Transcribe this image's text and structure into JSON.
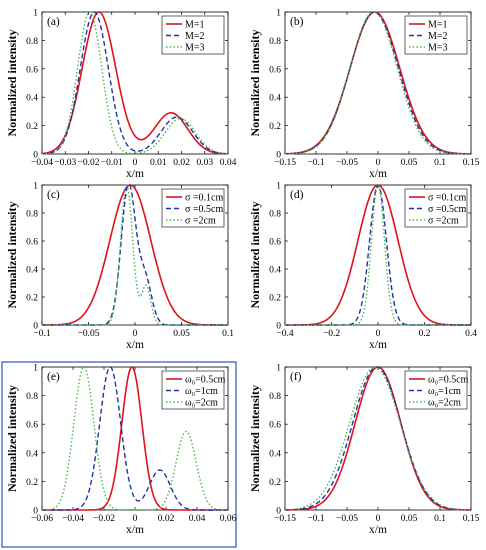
{
  "figure": {
    "background": "#ffffff"
  },
  "styles": {
    "colors": {
      "s1": "#e0131a",
      "s2": "#1e35a6",
      "s3": "#47b84a"
    },
    "dash": {
      "s1": "",
      "s2": "5,3",
      "s3": "1.5,2.2"
    }
  },
  "chart_data": [
    {
      "id": "a",
      "type": "line",
      "label": "(a)",
      "xlabel": "x/m",
      "ylabel": "Normalized intensity",
      "xlim": [
        -0.04,
        0.04
      ],
      "ylim": [
        0,
        1
      ],
      "xticks": [
        -0.04,
        -0.03,
        -0.02,
        -0.01,
        0,
        0.01,
        0.02,
        0.03,
        0.04
      ],
      "xtick_labels": [
        "−0.04",
        "−0.03",
        "−0.02",
        "−0.01",
        "0",
        "0.01",
        "0.02",
        "0.03",
        "0.04"
      ],
      "yticks": [
        0,
        0.2,
        0.4,
        0.6,
        0.8,
        1
      ],
      "ytick_labels": [
        "0",
        "0.2",
        "0.4",
        "0.6",
        "0.8",
        "1"
      ],
      "legend_pos": "top-right",
      "boxed": false,
      "series": [
        {
          "name": "M=1",
          "style": "s1",
          "peaks": [
            {
              "a": 1.0,
              "c": -0.0155,
              "s": 0.0072
            },
            {
              "a": 0.29,
              "c": 0.0155,
              "s": 0.0072
            }
          ]
        },
        {
          "name": "M=2",
          "style": "s2",
          "peaks": [
            {
              "a": 1.0,
              "c": -0.0175,
              "s": 0.006
            },
            {
              "a": 0.26,
              "c": 0.018,
              "s": 0.0068
            }
          ]
        },
        {
          "name": "M=3",
          "style": "s3",
          "peaks": [
            {
              "a": 1.0,
              "c": -0.0195,
              "s": 0.0052
            },
            {
              "a": 0.25,
              "c": 0.0195,
              "s": 0.0065
            }
          ]
        }
      ]
    },
    {
      "id": "b",
      "type": "line",
      "label": "(b)",
      "xlabel": "x/m",
      "ylabel": "Normalized intensity",
      "xlim": [
        -0.15,
        0.15
      ],
      "ylim": [
        0,
        1
      ],
      "xticks": [
        -0.15,
        -0.1,
        -0.05,
        0,
        0.05,
        0.1,
        0.15
      ],
      "xtick_labels": [
        "−0.15",
        "−0.1",
        "−0.05",
        "0",
        "0.05",
        "0.1",
        "0.15"
      ],
      "yticks": [
        0,
        0.2,
        0.4,
        0.6,
        0.8,
        1
      ],
      "ytick_labels": [
        "0",
        "0.2",
        "0.4",
        "0.6",
        "0.8",
        "1"
      ],
      "legend_pos": "top-right",
      "boxed": false,
      "series": [
        {
          "name": "M=1",
          "style": "s1",
          "peaks": [
            {
              "a": 1.0,
              "c": -0.005,
              "s": 0.04
            }
          ]
        },
        {
          "name": "M=2",
          "style": "s2",
          "peaks": [
            {
              "a": 1.0,
              "c": -0.006,
              "s": 0.039
            }
          ]
        },
        {
          "name": "M=3",
          "style": "s3",
          "peaks": [
            {
              "a": 1.0,
              "c": -0.007,
              "s": 0.038
            }
          ]
        }
      ]
    },
    {
      "id": "c",
      "type": "line",
      "label": "(c)",
      "xlabel": "x/m",
      "ylabel": "Normalized intensity",
      "xlim": [
        -0.1,
        0.1
      ],
      "ylim": [
        0,
        1
      ],
      "xticks": [
        -0.1,
        -0.05,
        0,
        0.05,
        0.1
      ],
      "xtick_labels": [
        "−0.1",
        "−0.05",
        "0",
        "0.05",
        "0.1"
      ],
      "yticks": [
        0,
        0.2,
        0.4,
        0.6,
        0.8,
        1
      ],
      "ytick_labels": [
        "0",
        "0.2",
        "0.4",
        "0.6",
        "0.8",
        "1"
      ],
      "legend_pos": "top-right",
      "boxed": false,
      "series": [
        {
          "name": "σ =0.1cm",
          "style": "s1",
          "peaks": [
            {
              "a": 1.0,
              "c": -0.005,
              "s": 0.022
            }
          ]
        },
        {
          "name": "σ =0.5cm",
          "style": "s2",
          "peaks": [
            {
              "a": 1.0,
              "c": -0.007,
              "s": 0.0078
            },
            {
              "a": 0.32,
              "c": 0.011,
              "s": 0.007
            }
          ]
        },
        {
          "name": "σ =2cm",
          "style": "s3",
          "peaks": [
            {
              "a": 1.0,
              "c": -0.009,
              "s": 0.0065
            },
            {
              "a": 0.28,
              "c": 0.012,
              "s": 0.005
            }
          ]
        }
      ]
    },
    {
      "id": "d",
      "type": "line",
      "label": "(d)",
      "xlabel": "x/m",
      "ylabel": "Normalized intensity",
      "xlim": [
        -0.4,
        0.4
      ],
      "ylim": [
        0,
        1
      ],
      "xticks": [
        -0.4,
        -0.2,
        0,
        0.2,
        0.4
      ],
      "xtick_labels": [
        "−0.4",
        "−0.2",
        "0",
        "0.2",
        "0.4"
      ],
      "yticks": [
        0,
        0.2,
        0.4,
        0.6,
        0.8,
        1
      ],
      "ytick_labels": [
        "0",
        "0.2",
        "0.4",
        "0.6",
        "0.8",
        "1"
      ],
      "legend_pos": "top-right",
      "boxed": false,
      "series": [
        {
          "name": "σ =0.1cm",
          "style": "s1",
          "peaks": [
            {
              "a": 1.0,
              "c": 0.0,
              "s": 0.086
            }
          ]
        },
        {
          "name": "σ =0.5cm",
          "style": "s2",
          "peaks": [
            {
              "a": 1.0,
              "c": 0.0,
              "s": 0.036
            }
          ]
        },
        {
          "name": "σ =2cm",
          "style": "s3",
          "peaks": [
            {
              "a": 1.0,
              "c": 0.0,
              "s": 0.028
            }
          ]
        }
      ]
    },
    {
      "id": "e",
      "type": "line",
      "label": "(e)",
      "xlabel": "x/m",
      "ylabel": "Normalized intensity",
      "xlim": [
        -0.06,
        0.06
      ],
      "ylim": [
        0,
        1
      ],
      "xticks": [
        -0.06,
        -0.04,
        -0.02,
        0,
        0.02,
        0.04,
        0.06
      ],
      "xtick_labels": [
        "−0.06",
        "−0.04",
        "−0.02",
        "0",
        "0.02",
        "0.04",
        "0.06"
      ],
      "yticks": [
        0,
        0.2,
        0.4,
        0.6,
        0.8,
        1
      ],
      "ytick_labels": [
        "0",
        "0.2",
        "0.4",
        "0.6",
        "0.8",
        "1"
      ],
      "legend_pos": "top-right",
      "boxed": true,
      "box_color": "#3a4fb8",
      "series": [
        {
          "name": "ω₀=0.5cm",
          "style": "s1",
          "peaks": [
            {
              "a": 1.0,
              "c": -0.002,
              "s": 0.0065
            }
          ]
        },
        {
          "name": "ω₀=1cm",
          "style": "s2",
          "peaks": [
            {
              "a": 1.0,
              "c": -0.016,
              "s": 0.0068
            },
            {
              "a": 0.28,
              "c": 0.016,
              "s": 0.0068
            }
          ]
        },
        {
          "name": "ω₀=2cm",
          "style": "s3",
          "peaks": [
            {
              "a": 1.0,
              "c": -0.033,
              "s": 0.0065
            },
            {
              "a": 0.55,
              "c": 0.033,
              "s": 0.0065
            }
          ]
        }
      ]
    },
    {
      "id": "f",
      "type": "line",
      "label": "(f)",
      "xlabel": "x/m",
      "ylabel": "Normalized intensity",
      "xlim": [
        -0.15,
        0.15
      ],
      "ylim": [
        0,
        1
      ],
      "xticks": [
        -0.15,
        -0.1,
        -0.05,
        0,
        0.05,
        0.1,
        0.15
      ],
      "xtick_labels": [
        "−0.15",
        "−0.1",
        "−0.05",
        "0",
        "0.05",
        "0.1",
        "0.15"
      ],
      "yticks": [
        0,
        0.2,
        0.4,
        0.6,
        0.8,
        1
      ],
      "ytick_labels": [
        "0",
        "0.2",
        "0.4",
        "0.6",
        "0.8",
        "1"
      ],
      "legend_pos": "top-right",
      "boxed": false,
      "series": [
        {
          "name": "ω₀=0.5cm",
          "style": "s1",
          "peaks": [
            {
              "a": 1.0,
              "c": 0.0,
              "s": 0.037
            }
          ]
        },
        {
          "name": "ω₀=1cm",
          "style": "s2",
          "peaks": [
            {
              "a": 1.0,
              "c": -0.002,
              "s": 0.039
            }
          ]
        },
        {
          "name": "ω₀=2cm",
          "style": "s3",
          "peaks": [
            {
              "a": 1.0,
              "c": -0.005,
              "s": 0.041
            }
          ]
        }
      ]
    }
  ]
}
